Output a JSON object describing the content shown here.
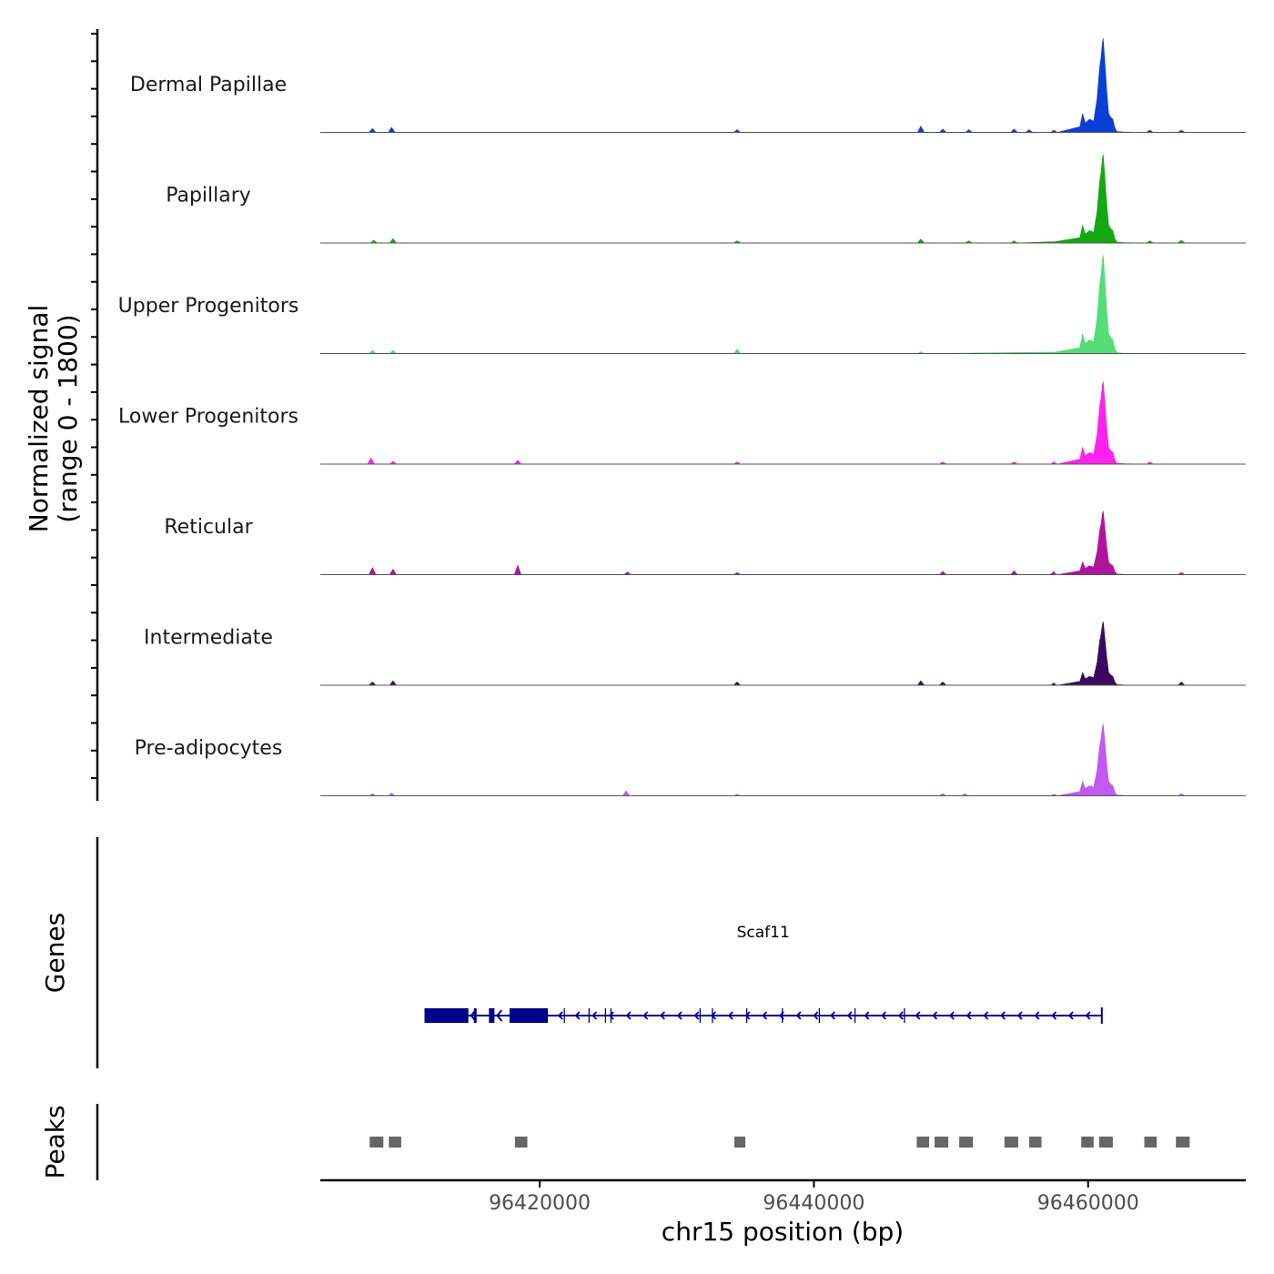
{
  "chart_data": {
    "type": "area",
    "title": "",
    "chromosome": "chr15",
    "xlabel": "chr15 position (bp)",
    "ylabel_line1": "Normalized signal",
    "ylabel_line2": "(range 0 - 1800)",
    "xlim": [
      96404000,
      96471500
    ],
    "ylim": [
      0,
      1800
    ],
    "x_ticks": [
      96420000,
      96440000,
      96460000
    ],
    "x_tick_labels": [
      "96420000",
      "96440000",
      "96460000"
    ],
    "genes_track_label": "Genes",
    "peaks_track_label": "Peaks",
    "series": [
      {
        "name": "Dermal Papillae",
        "color": "#0a3fd6",
        "peak_value": 1700,
        "minor_bumps": [
          [
            96407800,
            70
          ],
          [
            96409200,
            90
          ],
          [
            96434400,
            50
          ],
          [
            96447800,
            110
          ],
          [
            96449400,
            60
          ],
          [
            96451300,
            50
          ],
          [
            96454600,
            60
          ],
          [
            96455700,
            50
          ],
          [
            96457500,
            40
          ],
          [
            96464500,
            40
          ],
          [
            96466800,
            40
          ]
        ]
      },
      {
        "name": "Papillary",
        "color": "#12a812",
        "peak_value": 1600,
        "minor_bumps": [
          [
            96407900,
            50
          ],
          [
            96409300,
            80
          ],
          [
            96434400,
            40
          ],
          [
            96447800,
            70
          ],
          [
            96451300,
            40
          ],
          [
            96454600,
            40
          ],
          [
            96464500,
            40
          ],
          [
            96466800,
            50
          ]
        ]
      },
      {
        "name": "Upper Progenitors",
        "color": "#55dd77",
        "peak_value": 1780,
        "minor_bumps": [
          [
            96407800,
            60
          ],
          [
            96409300,
            60
          ],
          [
            96434400,
            80
          ],
          [
            96447800,
            30
          ]
        ]
      },
      {
        "name": "Lower Progenitors",
        "color": "#ff22ee",
        "peak_value": 1500,
        "minor_bumps": [
          [
            96407700,
            110
          ],
          [
            96409300,
            50
          ],
          [
            96418400,
            70
          ],
          [
            96434400,
            40
          ],
          [
            96449400,
            40
          ],
          [
            96454600,
            40
          ],
          [
            96457500,
            40
          ],
          [
            96464500,
            40
          ]
        ]
      },
      {
        "name": "Reticular",
        "color": "#b0149c",
        "peak_value": 1150,
        "minor_bumps": [
          [
            96407800,
            130
          ],
          [
            96409300,
            100
          ],
          [
            96418400,
            170
          ],
          [
            96426400,
            50
          ],
          [
            96434400,
            40
          ],
          [
            96449400,
            60
          ],
          [
            96454600,
            70
          ],
          [
            96457500,
            60
          ],
          [
            96466800,
            40
          ]
        ]
      },
      {
        "name": "Intermediate",
        "color": "#3a0a5c",
        "peak_value": 1150,
        "minor_bumps": [
          [
            96407800,
            60
          ],
          [
            96409300,
            80
          ],
          [
            96434400,
            60
          ],
          [
            96447800,
            80
          ],
          [
            96449400,
            60
          ],
          [
            96457500,
            40
          ],
          [
            96466800,
            60
          ]
        ]
      },
      {
        "name": "Pre-adipocytes",
        "color": "#c05af0",
        "peak_value": 1300,
        "minor_bumps": [
          [
            96407800,
            40
          ],
          [
            96409200,
            50
          ],
          [
            96426300,
            90
          ],
          [
            96434400,
            30
          ],
          [
            96449400,
            40
          ],
          [
            96451000,
            40
          ],
          [
            96457500,
            30
          ],
          [
            96466800,
            40
          ]
        ]
      }
    ],
    "gene": {
      "name": "Scaf11",
      "strand": "-",
      "start": 96411600,
      "end": 96461000,
      "exons": [
        [
          96411600,
          96414800
        ],
        [
          96415200,
          96415400
        ],
        [
          96416300,
          96416700
        ],
        [
          96417800,
          96420600
        ]
      ]
    },
    "peaks": [
      [
        96407600,
        96408600
      ],
      [
        96409000,
        96409900
      ],
      [
        96418200,
        96419100
      ],
      [
        96434200,
        96435000
      ],
      [
        96447500,
        96448400
      ],
      [
        96448800,
        96449800
      ],
      [
        96450600,
        96451600
      ],
      [
        96453900,
        96454900
      ],
      [
        96455700,
        96456600
      ],
      [
        96459500,
        96460400
      ],
      [
        96460800,
        96461800
      ],
      [
        96464100,
        96465000
      ],
      [
        96466400,
        96467400
      ]
    ]
  }
}
